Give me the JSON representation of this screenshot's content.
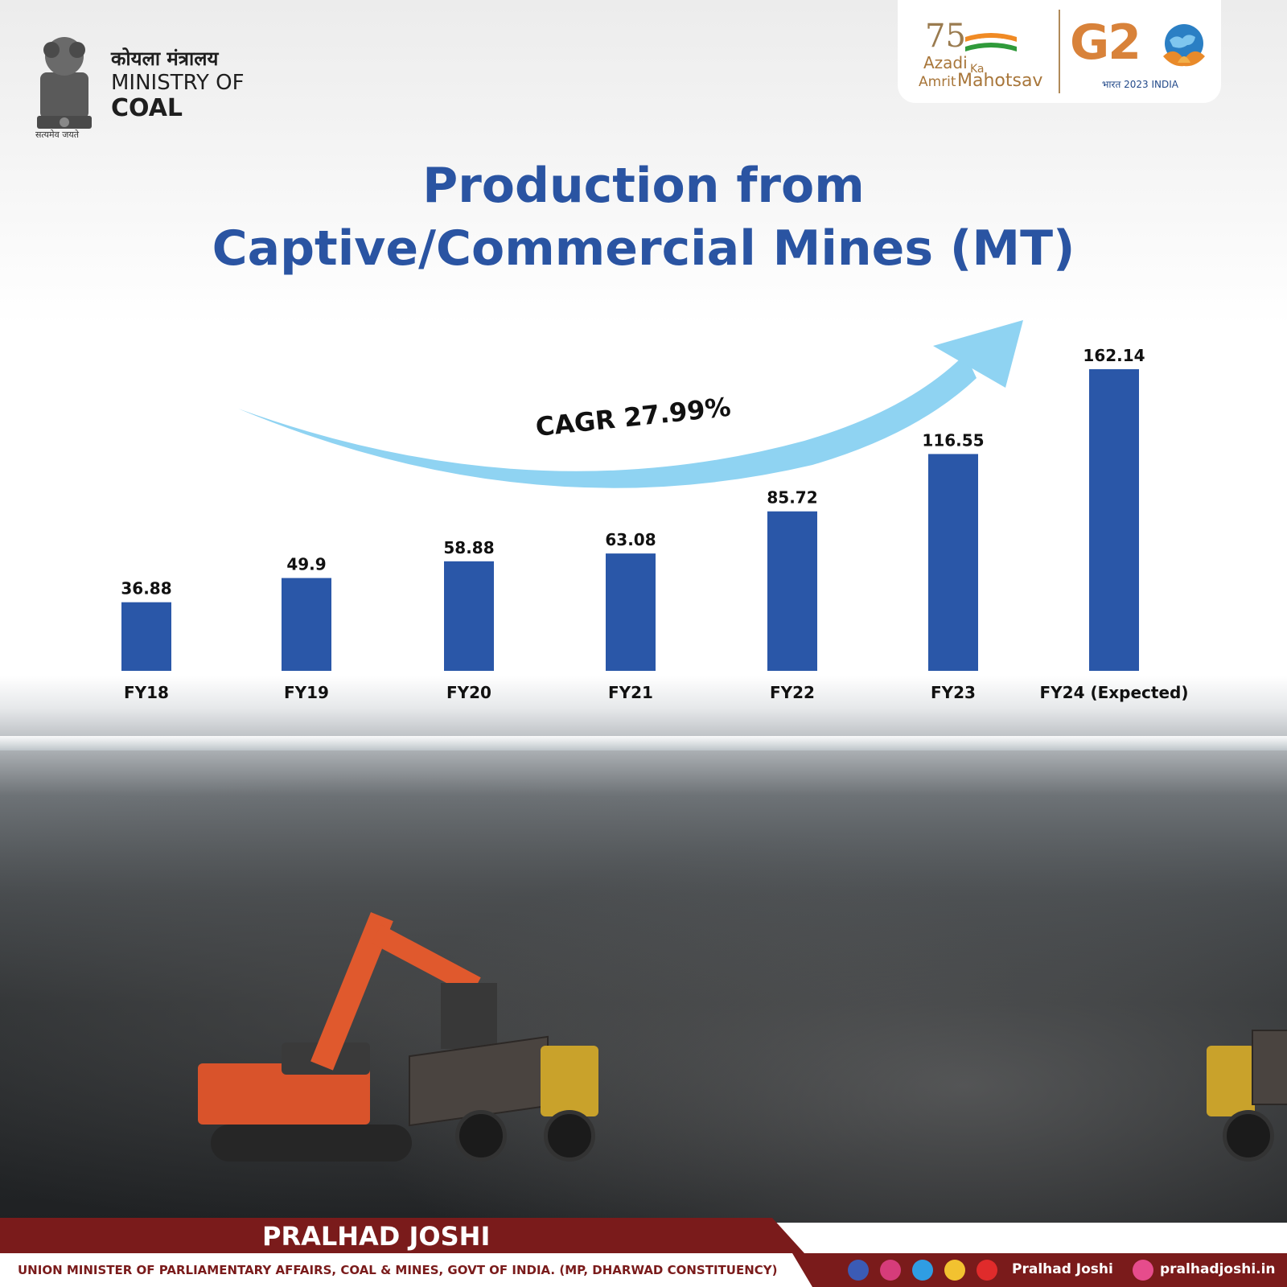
{
  "header": {
    "ministry_hindi": "कोयला मंत्रालय",
    "ministry_line1": "MINISTRY OF",
    "ministry_line2": "COAL",
    "motto": "सत्यमेव जयते",
    "akam": {
      "num": "75",
      "w1": "Azadi",
      "w2": "Ka",
      "w3": "Amrit",
      "w4": "Mahotsav"
    },
    "g20": {
      "text": "G2",
      "sub": "भारत 2023 INDIA"
    }
  },
  "title": {
    "line1": "Production from",
    "line2": "Captive/Commercial Mines (MT)"
  },
  "chart_data": {
    "type": "bar",
    "categories": [
      "FY18",
      "FY19",
      "FY20",
      "FY21",
      "FY22",
      "FY23",
      "FY24 (Expected)"
    ],
    "values": [
      36.88,
      49.9,
      58.88,
      63.08,
      85.72,
      116.55,
      162.14
    ],
    "value_labels": [
      "36.88",
      "49.9",
      "58.88",
      "63.08",
      "85.72",
      "116.55",
      "162.14"
    ],
    "annotation": "CAGR 27.99%",
    "ylim": [
      0,
      162.14
    ],
    "grid": false,
    "bar_color": "#2a57a8",
    "arrow_color": "#8fd3f2"
  },
  "footer": {
    "name": "PRALHAD JOSHI",
    "subtitle": "UNION MINISTER OF PARLIAMENTARY AFFAIRS, COAL & MINES, GOVT OF INDIA. (MP, DHARWAD CONSTITUENCY)",
    "handle": "Pralhad Joshi",
    "website": "pralhadjoshi.in",
    "social_icons": [
      "facebook-icon",
      "instagram-icon",
      "twitter-icon",
      "koo-icon",
      "youtube-icon"
    ]
  }
}
